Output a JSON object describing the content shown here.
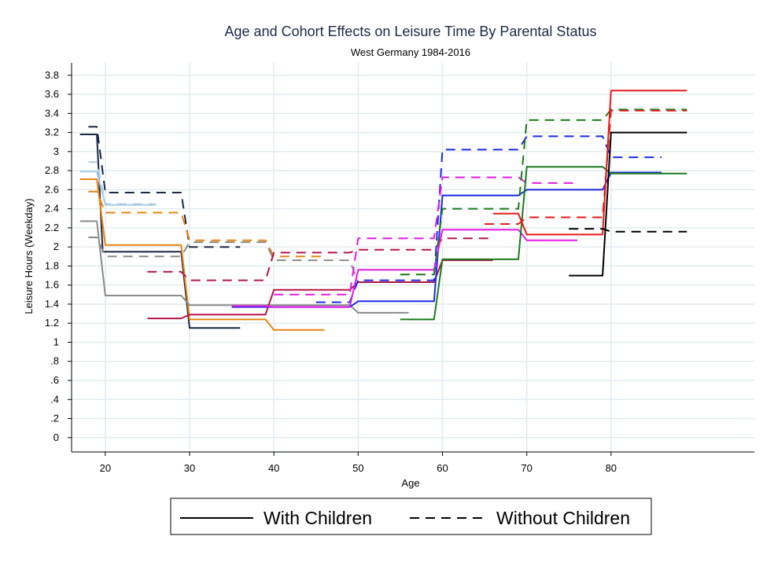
{
  "chart_data": {
    "type": "line",
    "title": "Age and Cohort Effects on Leisure Time By Parental Status",
    "subtitle": "West Germany 1984-2016",
    "xlabel": "Age",
    "ylabel": "Leisure Hours (Weekday)",
    "xlim": [
      16,
      97
    ],
    "ylim": [
      -0.15,
      3.93
    ],
    "xticks": [
      "20",
      "30",
      "40",
      "50",
      "60",
      "70",
      "80"
    ],
    "yticks": [
      {
        "v": 0,
        "label": "0"
      },
      {
        "v": 0.2,
        "label": ".2"
      },
      {
        "v": 0.4,
        "label": ".4"
      },
      {
        "v": 0.6,
        "label": ".6"
      },
      {
        "v": 0.8,
        "label": ".8"
      },
      {
        "v": 1,
        "label": "1"
      },
      {
        "v": 1.2,
        "label": "1.2"
      },
      {
        "v": 1.4,
        "label": "1.4"
      },
      {
        "v": 1.6,
        "label": "1.6"
      },
      {
        "v": 1.8,
        "label": "1.8"
      },
      {
        "v": 2,
        "label": "2"
      },
      {
        "v": 2.2,
        "label": "2.2"
      },
      {
        "v": 2.4,
        "label": "2.4"
      },
      {
        "v": 2.6,
        "label": "2.6"
      },
      {
        "v": 2.8,
        "label": "2.8"
      },
      {
        "v": 3,
        "label": "3"
      },
      {
        "v": 3.2,
        "label": "3.2"
      },
      {
        "v": 3.4,
        "label": "3.4"
      },
      {
        "v": 3.6,
        "label": "3.6"
      },
      {
        "v": 3.8,
        "label": "3.8"
      }
    ],
    "grid": true,
    "legend_position": "bottom",
    "legend": [
      {
        "label": "With Children",
        "dash": "solid"
      },
      {
        "label": "Without Children",
        "dash": "dashed"
      }
    ],
    "series": [
      {
        "color": "#1a2744",
        "dash": "solid",
        "points": [
          [
            17,
            3.18
          ],
          [
            19,
            3.18
          ],
          [
            19.7,
            1.95
          ],
          [
            29,
            1.95
          ],
          [
            30,
            1.15
          ],
          [
            36,
            1.15
          ]
        ]
      },
      {
        "color": "#1a2744",
        "dash": "dashed",
        "points": [
          [
            18,
            3.26
          ],
          [
            19,
            3.26
          ],
          [
            20,
            2.57
          ],
          [
            29,
            2.57
          ],
          [
            30,
            2.0
          ],
          [
            36,
            2.0
          ]
        ]
      },
      {
        "color": "#e6830f",
        "dash": "solid",
        "points": [
          [
            17,
            2.71
          ],
          [
            19,
            2.71
          ],
          [
            20,
            2.02
          ],
          [
            29,
            2.02
          ],
          [
            30,
            1.24
          ],
          [
            39,
            1.24
          ],
          [
            40,
            1.13
          ],
          [
            46,
            1.13
          ]
        ]
      },
      {
        "color": "#e6830f",
        "dash": "dashed",
        "points": [
          [
            18,
            2.58
          ],
          [
            19,
            2.58
          ],
          [
            20,
            2.36
          ],
          [
            29,
            2.36
          ],
          [
            30,
            2.07
          ],
          [
            39,
            2.07
          ],
          [
            40,
            1.9
          ],
          [
            46,
            1.9
          ]
        ]
      },
      {
        "color": "#8a8a8a",
        "dash": "solid",
        "points": [
          [
            17,
            2.27
          ],
          [
            19,
            2.27
          ],
          [
            20,
            1.49
          ],
          [
            29,
            1.49
          ],
          [
            30,
            1.39
          ],
          [
            49,
            1.39
          ],
          [
            50,
            1.31
          ],
          [
            56,
            1.31
          ]
        ]
      },
      {
        "color": "#8a8a8a",
        "dash": "dashed",
        "points": [
          [
            18,
            2.1
          ],
          [
            19,
            2.1
          ],
          [
            20,
            1.9
          ],
          [
            29,
            1.9
          ],
          [
            30,
            2.05
          ],
          [
            39,
            2.05
          ],
          [
            40,
            1.86
          ],
          [
            49,
            1.86
          ],
          [
            50,
            1.63
          ],
          [
            56,
            1.63
          ]
        ]
      },
      {
        "color": "#a8cce6",
        "dash": "solid",
        "points": [
          [
            17,
            2.79
          ],
          [
            19,
            2.79
          ],
          [
            20,
            2.44
          ],
          [
            26,
            2.44
          ]
        ]
      },
      {
        "color": "#a8cce6",
        "dash": "dashed",
        "points": [
          [
            18,
            2.89
          ],
          [
            19,
            2.89
          ],
          [
            20,
            2.45
          ],
          [
            26,
            2.45
          ]
        ]
      },
      {
        "color": "#b3164a",
        "dash": "solid",
        "points": [
          [
            25,
            1.25
          ],
          [
            29,
            1.25
          ],
          [
            30,
            1.29
          ],
          [
            39,
            1.29
          ],
          [
            40,
            1.55
          ],
          [
            49,
            1.55
          ],
          [
            50,
            1.63
          ],
          [
            59,
            1.63
          ],
          [
            60,
            1.86
          ],
          [
            66,
            1.86
          ]
        ]
      },
      {
        "color": "#b3164a",
        "dash": "dashed",
        "points": [
          [
            25,
            1.74
          ],
          [
            29,
            1.74
          ],
          [
            30,
            1.65
          ],
          [
            39,
            1.65
          ],
          [
            40,
            1.94
          ],
          [
            49,
            1.94
          ],
          [
            50,
            1.97
          ],
          [
            59,
            1.97
          ],
          [
            60,
            2.09
          ],
          [
            66,
            2.09
          ]
        ]
      },
      {
        "color": "#1a2ae6",
        "dash": "solid",
        "points": [
          [
            35,
            1.37
          ],
          [
            49,
            1.37
          ],
          [
            50,
            1.43
          ],
          [
            59,
            1.43
          ],
          [
            60,
            2.54
          ],
          [
            69,
            2.54
          ],
          [
            70,
            2.6
          ],
          [
            79,
            2.6
          ],
          [
            80,
            2.78
          ],
          [
            86,
            2.78
          ]
        ]
      },
      {
        "color": "#1a2ae6",
        "dash": "dashed",
        "points": [
          [
            45,
            1.42
          ],
          [
            49,
            1.42
          ],
          [
            50,
            1.65
          ],
          [
            59,
            1.65
          ],
          [
            60,
            3.02
          ],
          [
            69,
            3.02
          ],
          [
            70,
            3.16
          ],
          [
            79,
            3.16
          ],
          [
            80,
            2.94
          ],
          [
            86,
            2.94
          ]
        ]
      },
      {
        "color": "#e61ae6",
        "dash": "solid",
        "points": [
          [
            35,
            1.38
          ],
          [
            39,
            1.38
          ],
          [
            40,
            1.37
          ],
          [
            49,
            1.37
          ],
          [
            50,
            1.76
          ],
          [
            59,
            1.76
          ],
          [
            60,
            2.18
          ],
          [
            69,
            2.18
          ],
          [
            70,
            2.07
          ],
          [
            76,
            2.07
          ]
        ]
      },
      {
        "color": "#e61ae6",
        "dash": "dashed",
        "points": [
          [
            40,
            1.5
          ],
          [
            49,
            1.5
          ],
          [
            50,
            2.09
          ],
          [
            59,
            2.09
          ],
          [
            60,
            2.73
          ],
          [
            69,
            2.73
          ],
          [
            70,
            2.67
          ],
          [
            76,
            2.67
          ]
        ]
      },
      {
        "color": "#1a7a1a",
        "dash": "solid",
        "points": [
          [
            55,
            1.24
          ],
          [
            59,
            1.24
          ],
          [
            60,
            1.87
          ],
          [
            69,
            1.87
          ],
          [
            70,
            2.84
          ],
          [
            79,
            2.84
          ],
          [
            80,
            2.77
          ],
          [
            89,
            2.77
          ]
        ]
      },
      {
        "color": "#1a7a1a",
        "dash": "dashed",
        "points": [
          [
            55,
            1.71
          ],
          [
            59,
            1.71
          ],
          [
            60,
            2.4
          ],
          [
            69,
            2.4
          ],
          [
            70,
            3.33
          ],
          [
            79,
            3.33
          ],
          [
            80,
            3.44
          ],
          [
            89,
            3.44
          ]
        ]
      },
      {
        "color": "#e61a1a",
        "dash": "solid",
        "points": [
          [
            66,
            2.35
          ],
          [
            69,
            2.35
          ],
          [
            70,
            2.13
          ],
          [
            79,
            2.13
          ],
          [
            80,
            3.64
          ],
          [
            89,
            3.64
          ]
        ]
      },
      {
        "color": "#e61a1a",
        "dash": "dashed",
        "points": [
          [
            65,
            2.24
          ],
          [
            69,
            2.24
          ],
          [
            70,
            2.31
          ],
          [
            79,
            2.31
          ],
          [
            80,
            3.43
          ],
          [
            89,
            3.43
          ]
        ]
      },
      {
        "color": "#000000",
        "dash": "solid",
        "points": [
          [
            75,
            1.7
          ],
          [
            79,
            1.7
          ],
          [
            80,
            3.2
          ],
          [
            89,
            3.2
          ]
        ]
      },
      {
        "color": "#000000",
        "dash": "dashed",
        "points": [
          [
            75,
            2.19
          ],
          [
            79,
            2.19
          ],
          [
            80,
            2.16
          ],
          [
            89,
            2.16
          ]
        ]
      }
    ]
  }
}
